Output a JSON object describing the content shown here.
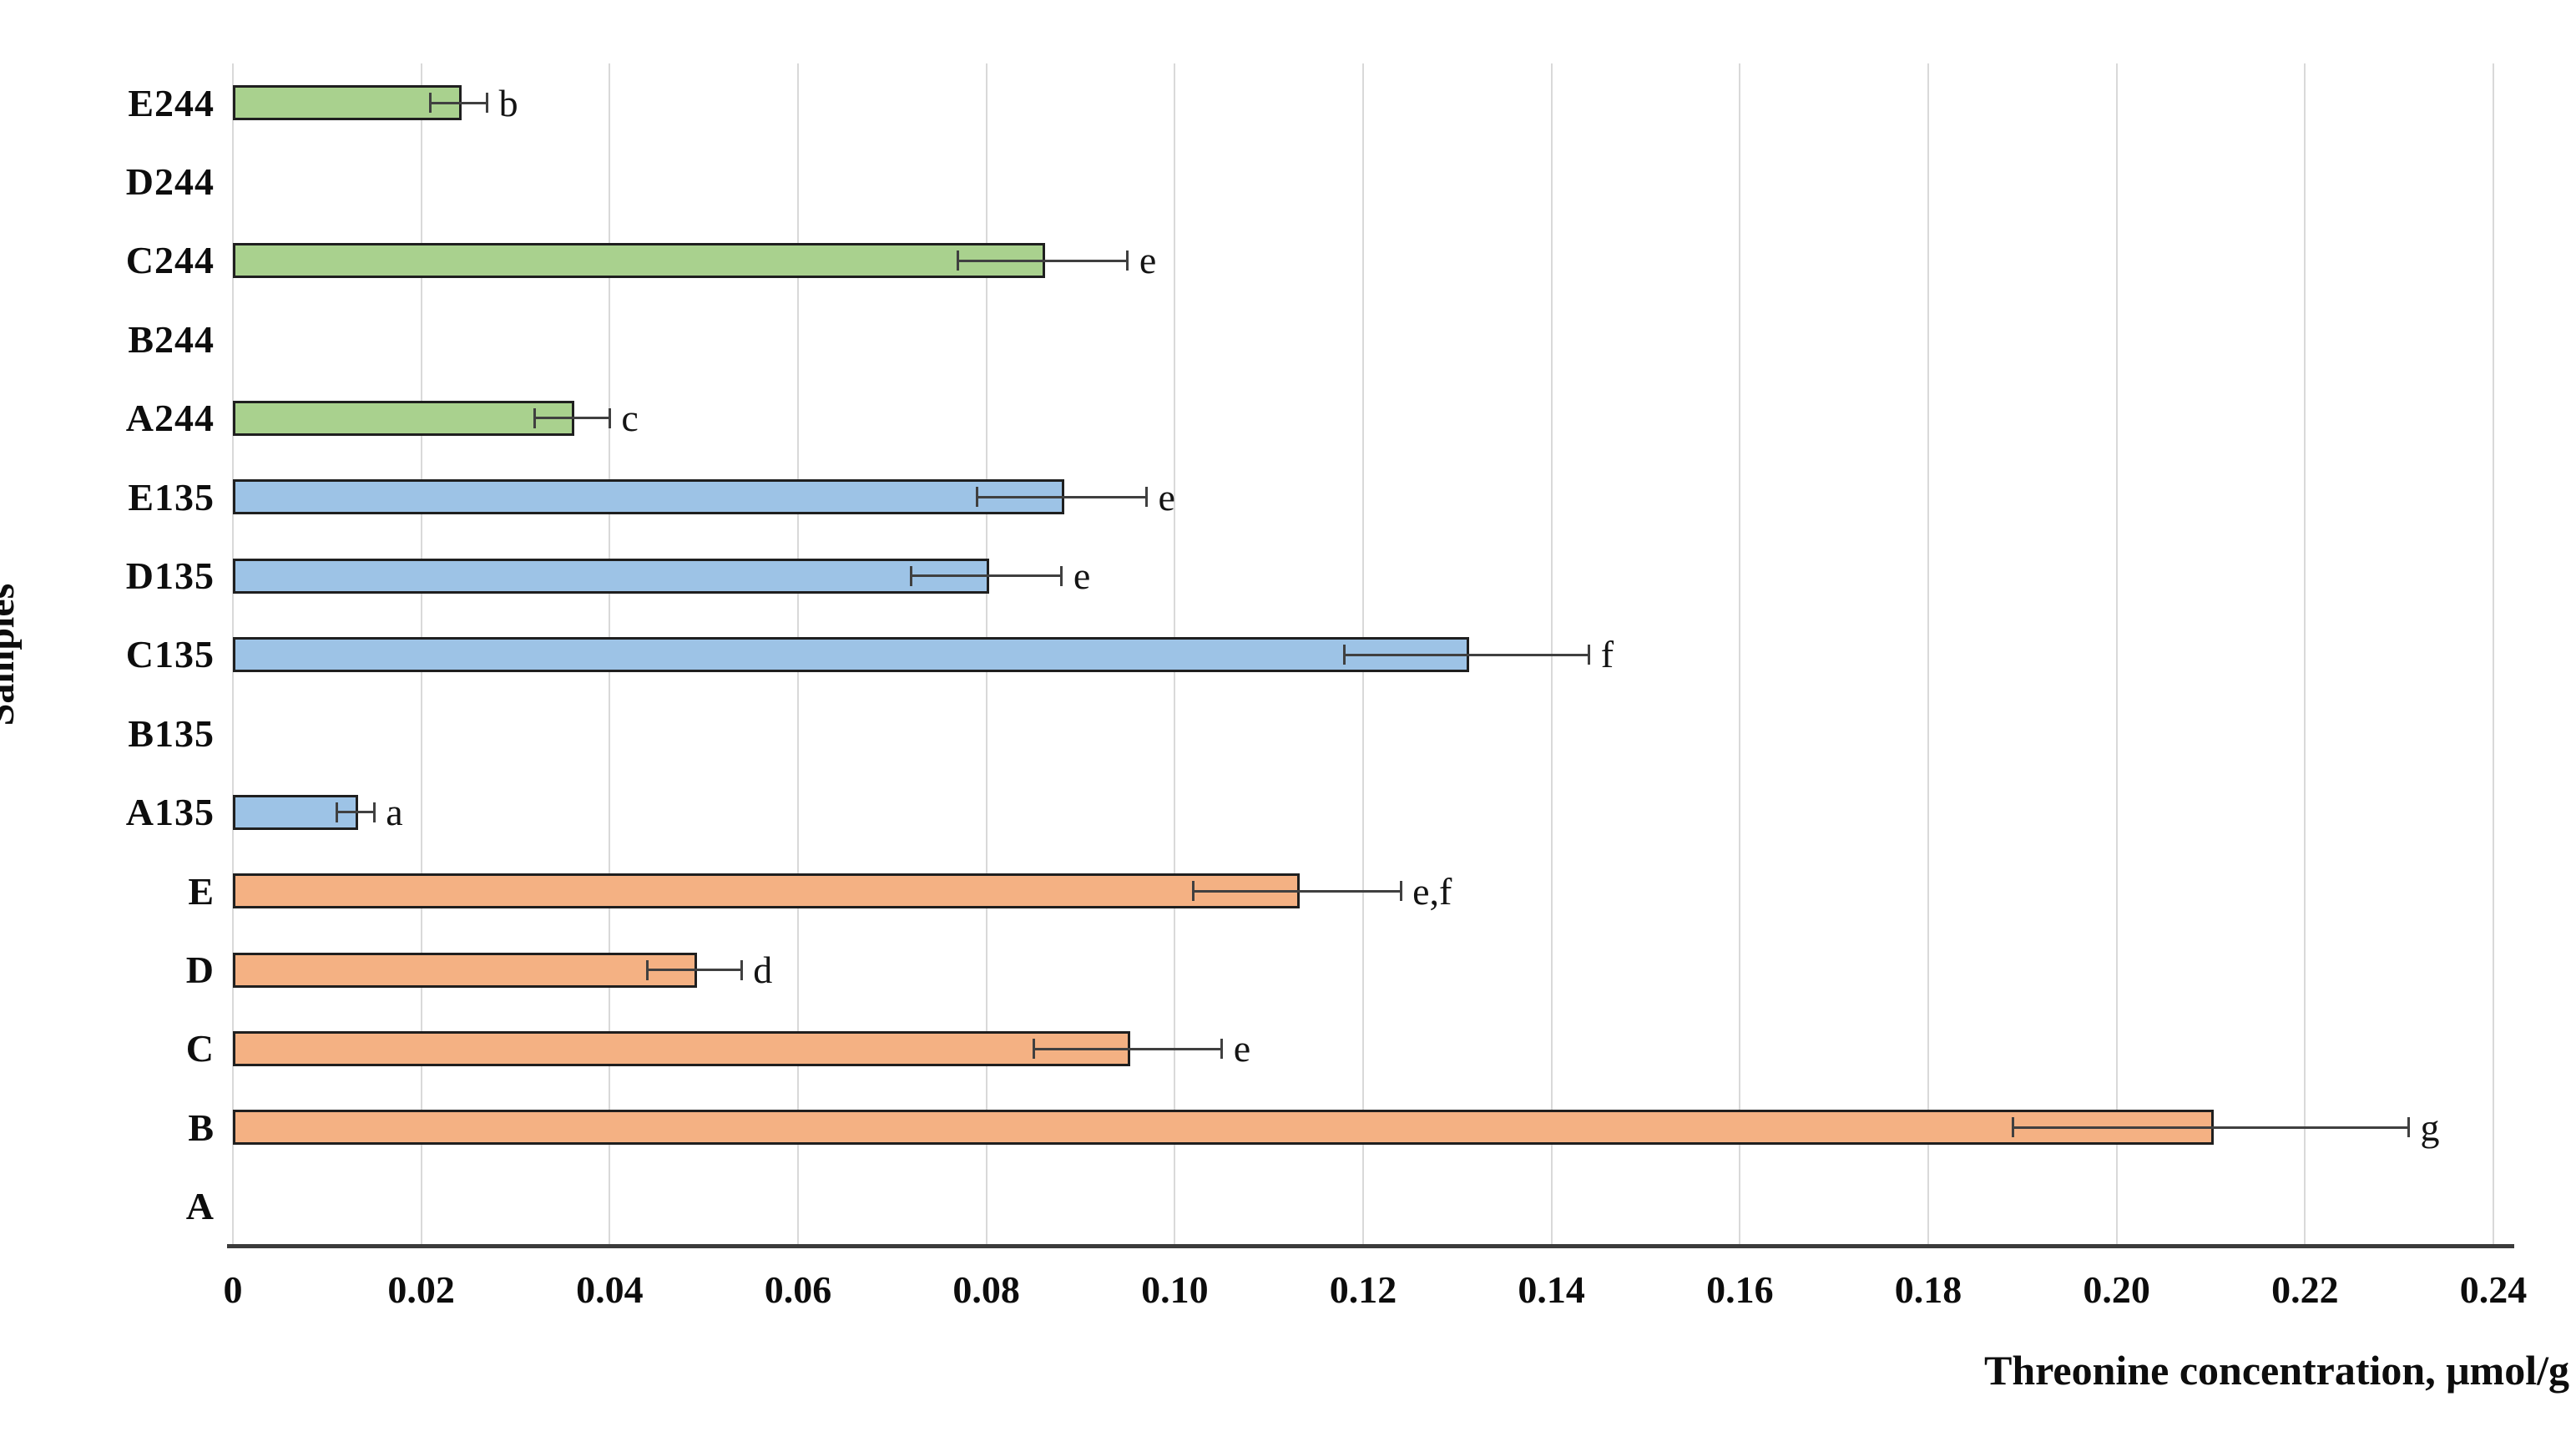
{
  "axes": {
    "x_title": "Threonine concentration, μmol/g",
    "y_title": "Samples"
  },
  "chart_data": {
    "type": "bar",
    "orientation": "horizontal",
    "title": "",
    "xlabel": "Threonine concentration, μmol/g",
    "ylabel": "Samples",
    "xlim": [
      0,
      0.24
    ],
    "xtick_step": 0.02,
    "xtick_labels": [
      "0",
      "0.02",
      "0.04",
      "0.06",
      "0.08",
      "0.10",
      "0.12",
      "0.14",
      "0.16",
      "0.18",
      "0.20",
      "0.22",
      "0.24"
    ],
    "grid": true,
    "legend": "none",
    "categories_top_to_bottom": [
      "E244",
      "D244",
      "C244",
      "B244",
      "A244",
      "E135",
      "D135",
      "C135",
      "B135",
      "A135",
      "E",
      "D",
      "C",
      "B",
      "A"
    ],
    "values": [
      0.024,
      0,
      0.086,
      0,
      0.036,
      0.088,
      0.08,
      0.131,
      0,
      0.013,
      0.113,
      0.049,
      0.095,
      0.21,
      0
    ],
    "errors": [
      0.003,
      0,
      0.009,
      0,
      0.004,
      0.009,
      0.008,
      0.013,
      0,
      0.002,
      0.011,
      0.005,
      0.01,
      0.021,
      0
    ],
    "significance_labels": [
      "b",
      "",
      "e",
      "",
      "c",
      "e",
      "e",
      "f",
      "",
      "a",
      "e,f",
      "d",
      "e",
      "g",
      ""
    ],
    "group_of_category": [
      "244",
      "244",
      "244",
      "244",
      "244",
      "135",
      "135",
      "135",
      "135",
      "135",
      "base",
      "base",
      "base",
      "base",
      "base"
    ],
    "colors": {
      "group_244_fill": "#A9D18E",
      "group_135_fill": "#9DC3E6",
      "group_base_fill": "#F4B183",
      "bar_border": "#1f1f1f",
      "gridline": "#d9d9d9",
      "axis_line": "#3b3b3b",
      "error_bar": "#404040",
      "text": "#0d0d0d"
    }
  }
}
